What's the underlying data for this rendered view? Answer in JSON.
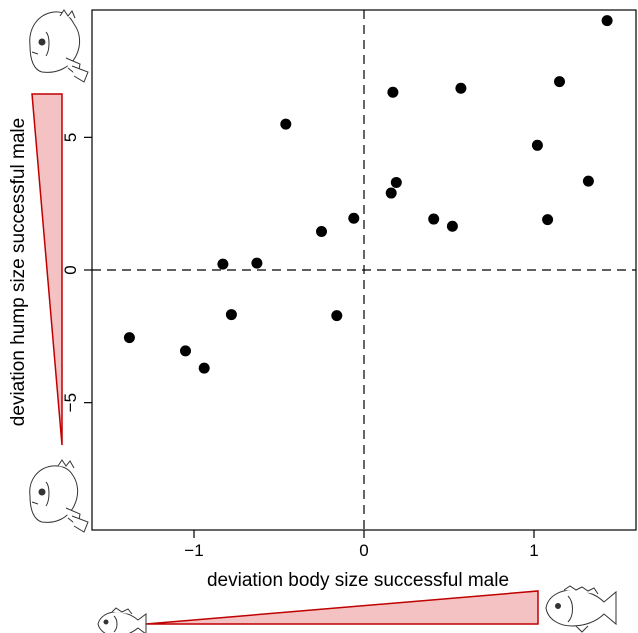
{
  "chart_data": {
    "type": "scatter",
    "xlabel": "deviation body size successful male",
    "ylabel": "deviation hump size successful male",
    "xlim": [
      -1.6,
      1.6
    ],
    "ylim": [
      -9.8,
      9.8
    ],
    "x_ticks": [
      {
        "value": -1,
        "label": "−1"
      },
      {
        "value": 0,
        "label": "0"
      },
      {
        "value": 1,
        "label": "1"
      }
    ],
    "y_ticks": [
      {
        "value": -5,
        "label": "−5"
      },
      {
        "value": 0,
        "label": "0"
      },
      {
        "value": 5,
        "label": "5"
      }
    ],
    "reference_lines": {
      "x": 0,
      "y": 0,
      "style": "dashed"
    },
    "grid": false,
    "legend": "none",
    "marker_color": "#000000",
    "wedge_fill_color": "#f4c2c2",
    "wedge_stroke_color": "#c00000",
    "points": [
      {
        "x": -1.38,
        "y": -2.55
      },
      {
        "x": -1.05,
        "y": -3.05
      },
      {
        "x": -0.94,
        "y": -3.7
      },
      {
        "x": -0.83,
        "y": 0.22
      },
      {
        "x": -0.78,
        "y": -1.68
      },
      {
        "x": -0.63,
        "y": 0.26
      },
      {
        "x": -0.46,
        "y": 5.5
      },
      {
        "x": -0.25,
        "y": 1.45
      },
      {
        "x": -0.16,
        "y": -1.72
      },
      {
        "x": -0.06,
        "y": 1.95
      },
      {
        "x": 0.16,
        "y": 2.9
      },
      {
        "x": 0.17,
        "y": 6.7
      },
      {
        "x": 0.19,
        "y": 3.3
      },
      {
        "x": 0.41,
        "y": 1.92
      },
      {
        "x": 0.52,
        "y": 1.65
      },
      {
        "x": 0.57,
        "y": 6.85
      },
      {
        "x": 1.02,
        "y": 4.7
      },
      {
        "x": 1.08,
        "y": 1.9
      },
      {
        "x": 1.15,
        "y": 7.1
      },
      {
        "x": 1.32,
        "y": 3.35
      },
      {
        "x": 1.43,
        "y": 9.4
      }
    ]
  },
  "icons": {
    "fish_top_left": "fish-large-hump-icon",
    "fish_bottom_left": "fish-small-hump-icon",
    "fish_bottom_small": "fish-small-body-icon",
    "fish_bottom_right": "fish-large-body-icon"
  }
}
